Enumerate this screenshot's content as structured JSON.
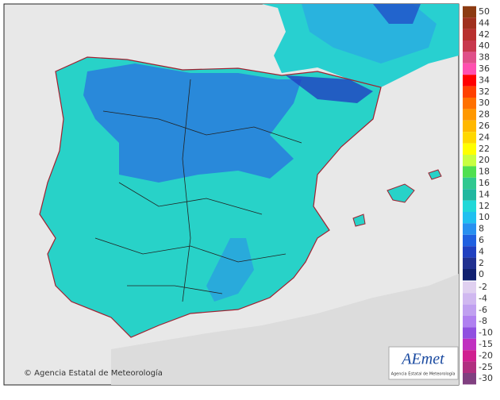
{
  "legend": {
    "labels": [
      50,
      44,
      42,
      40,
      38,
      36,
      34,
      32,
      30,
      28,
      26,
      24,
      22,
      20,
      18,
      16,
      14,
      12,
      10,
      8,
      6,
      4,
      2,
      0,
      -2,
      -4,
      -6,
      -8,
      -10,
      -15,
      -20,
      -25,
      -30
    ],
    "colors": [
      "#8c3b12",
      "#a0301e",
      "#b8302e",
      "#c8384e",
      "#e0508a",
      "#ff50b0",
      "#ff0000",
      "#ff4000",
      "#ff7000",
      "#ff9800",
      "#ffb800",
      "#ffd800",
      "#ffff00",
      "#c8ff40",
      "#50e050",
      "#30c890",
      "#20b8a0",
      "#20d8d8",
      "#20c0f0",
      "#2890f0",
      "#2060e0",
      "#2040c0",
      "#203090",
      "#102070",
      "#e0d0f0",
      "#d0b8f0",
      "#c0a0f0",
      "#b080f0",
      "#9050e0",
      "#c030c0",
      "#d02090",
      "#b03080",
      "#804080"
    ]
  },
  "footer": {
    "credit": "© Agencia Estatal de Meteorología"
  },
  "logo": {
    "name": "AEmet",
    "subtitle": "Agencia Estatal de Meteorología"
  }
}
